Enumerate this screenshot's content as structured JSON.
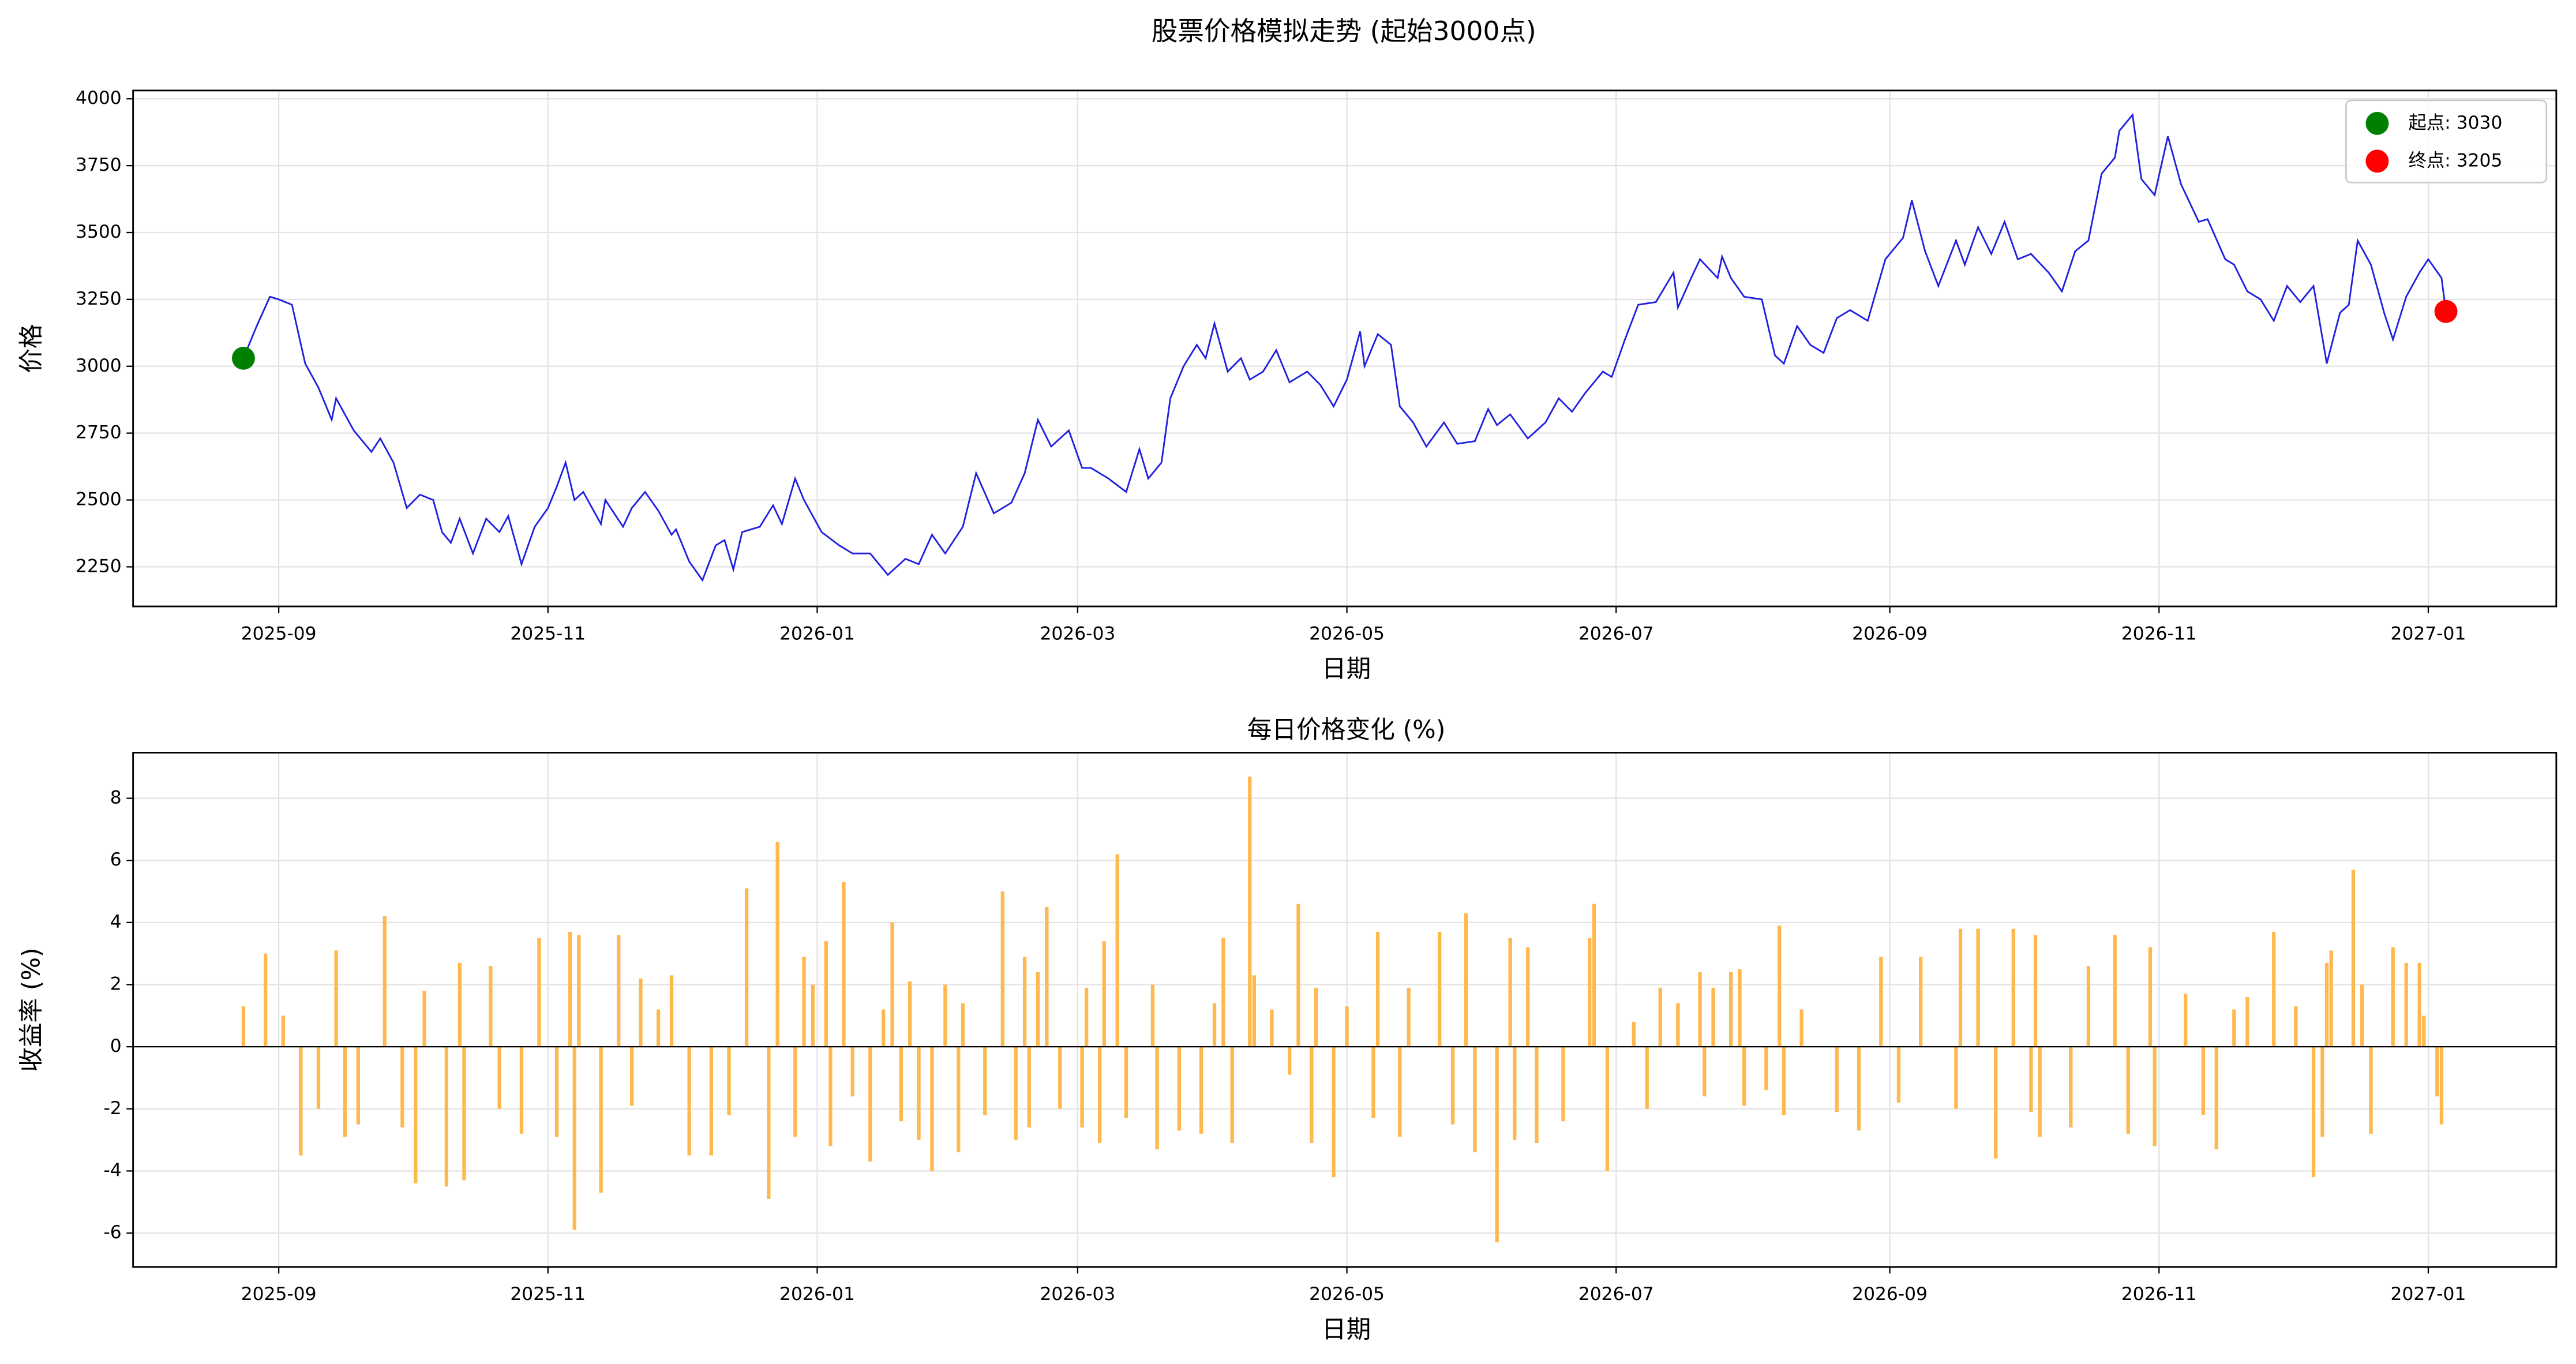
{
  "title": "股票价格模拟走势 (起始3000点)",
  "chart_data": [
    {
      "type": "line",
      "xlabel": "日期",
      "ylabel": "价格",
      "grid": true,
      "legend": "upper right",
      "xlim": [
        -33,
        516
      ],
      "ylim": [
        2102,
        4031
      ],
      "xticks": [
        {
          "value": 0,
          "label": "2025-09"
        },
        {
          "value": 61,
          "label": "2025-11"
        },
        {
          "value": 122,
          "label": "2026-01"
        },
        {
          "value": 181,
          "label": "2026-03"
        },
        {
          "value": 242,
          "label": "2026-05"
        },
        {
          "value": 303,
          "label": "2026-07"
        },
        {
          "value": 365,
          "label": "2026-09"
        },
        {
          "value": 426,
          "label": "2026-11"
        },
        {
          "value": 487,
          "label": "2027-01"
        }
      ],
      "yticks": [
        2250,
        2500,
        2750,
        3000,
        3250,
        3500,
        3750,
        4000
      ],
      "series": [
        {
          "color": "#1f1fe0",
          "x": [
            -8,
            -5,
            -2,
            0,
            3,
            6,
            9,
            12,
            13,
            17,
            21,
            23,
            26,
            29,
            32,
            35,
            37,
            39,
            41,
            44,
            47,
            50,
            52,
            55,
            58,
            61,
            63,
            65,
            67,
            69,
            73,
            74,
            78,
            80,
            83,
            86,
            89,
            90,
            93,
            96,
            99,
            101,
            103,
            105,
            109,
            112,
            114,
            117,
            119,
            123,
            127,
            130,
            134,
            138,
            142,
            145,
            148,
            151,
            155,
            158,
            162,
            166,
            169,
            172,
            175,
            179,
            182,
            184,
            188,
            192,
            195,
            197,
            200,
            202,
            205,
            208,
            210,
            212,
            215,
            218,
            220,
            223,
            226,
            229,
            233,
            236,
            239,
            242,
            245,
            246,
            249,
            252,
            254,
            257,
            260,
            264,
            267,
            271,
            274,
            276,
            279,
            283,
            287,
            290,
            293,
            296,
            300,
            302,
            305,
            308,
            312,
            316,
            317,
            320,
            322,
            326,
            327,
            329,
            332,
            336,
            339,
            341,
            344,
            347,
            350,
            353,
            356,
            360,
            364,
            368,
            370,
            373,
            376,
            380,
            382,
            385,
            388,
            391,
            394,
            397,
            401,
            404,
            407,
            410,
            413,
            416,
            417,
            420,
            422,
            425,
            428,
            431,
            435,
            437,
            441,
            443,
            446,
            449,
            452,
            455,
            458,
            461,
            464,
            467,
            469,
            471,
            474,
            477,
            479,
            482,
            485,
            487,
            490,
            491
          ],
          "values": [
            3030,
            3150,
            3260,
            3250,
            3230,
            3010,
            2920,
            2800,
            2880,
            2760,
            2680,
            2730,
            2640,
            2470,
            2520,
            2500,
            2380,
            2340,
            2430,
            2300,
            2430,
            2380,
            2440,
            2260,
            2400,
            2470,
            2550,
            2640,
            2500,
            2530,
            2410,
            2500,
            2400,
            2470,
            2530,
            2460,
            2370,
            2390,
            2270,
            2200,
            2330,
            2350,
            2240,
            2380,
            2400,
            2480,
            2410,
            2580,
            2500,
            2380,
            2330,
            2300,
            2300,
            2220,
            2280,
            2260,
            2370,
            2300,
            2400,
            2600,
            2450,
            2490,
            2600,
            2800,
            2700,
            2760,
            2620,
            2620,
            2580,
            2530,
            2690,
            2580,
            2640,
            2880,
            3000,
            3080,
            3030,
            3160,
            2980,
            3030,
            2950,
            2980,
            3060,
            2940,
            2980,
            2930,
            2850,
            2950,
            3130,
            3000,
            3120,
            3080,
            2850,
            2790,
            2700,
            2790,
            2710,
            2720,
            2840,
            2780,
            2820,
            2730,
            2790,
            2880,
            2830,
            2900,
            2980,
            2960,
            3100,
            3230,
            3240,
            3350,
            3220,
            3330,
            3400,
            3330,
            3410,
            3330,
            3260,
            3250,
            3040,
            3010,
            3150,
            3080,
            3050,
            3180,
            3210,
            3170,
            3400,
            3480,
            3620,
            3430,
            3300,
            3470,
            3380,
            3520,
            3420,
            3540,
            3400,
            3420,
            3350,
            3280,
            3430,
            3470,
            3720,
            3780,
            3880,
            3940,
            3700,
            3640,
            3860,
            3680,
            3540,
            3550,
            3400,
            3380,
            3280,
            3250,
            3170,
            3300,
            3240,
            3300,
            3010,
            3200,
            3230,
            3470,
            3380,
            3200,
            3100,
            3260,
            3350,
            3400,
            3330,
            3205
          ]
        },
        {
          "name": "起点: 3030",
          "color": "green",
          "x": [
            -8
          ],
          "values": [
            3030
          ]
        },
        {
          "name": "终点: 3205",
          "color": "red",
          "x": [
            491
          ],
          "values": [
            3205
          ]
        }
      ]
    },
    {
      "type": "bar",
      "title": "每日价格变化 (%)",
      "xlabel": "日期",
      "ylabel": "收益率 (%)",
      "grid": true,
      "color": "#ffb84d",
      "zero_line": 0,
      "xlim": [
        -33,
        516
      ],
      "ylim": [
        -7.09,
        9.47
      ],
      "xticks": [
        {
          "value": 0,
          "label": "2025-09"
        },
        {
          "value": 61,
          "label": "2025-11"
        },
        {
          "value": 122,
          "label": "2026-01"
        },
        {
          "value": 181,
          "label": "2026-03"
        },
        {
          "value": 242,
          "label": "2026-05"
        },
        {
          "value": 303,
          "label": "2026-07"
        },
        {
          "value": 365,
          "label": "2026-09"
        },
        {
          "value": 426,
          "label": "2026-11"
        },
        {
          "value": 487,
          "label": "2027-01"
        }
      ],
      "yticks": [
        -6,
        -4,
        -2,
        0,
        2,
        4,
        6,
        8
      ],
      "x": [
        -8,
        -3,
        1,
        5,
        9,
        13,
        15,
        18,
        24,
        28,
        31,
        33,
        38,
        41,
        42,
        48,
        50,
        55,
        59,
        63,
        66,
        67,
        68,
        73,
        77,
        80,
        82,
        86,
        89,
        93,
        98,
        102,
        106,
        111,
        113,
        117,
        119,
        121,
        124,
        125,
        128,
        130,
        134,
        137,
        139,
        141,
        143,
        145,
        148,
        151,
        154,
        155,
        160,
        164,
        167,
        169,
        170,
        172,
        174,
        177,
        182,
        183,
        186,
        187,
        190,
        192,
        198,
        199,
        204,
        209,
        212,
        214,
        216,
        220,
        221,
        225,
        229,
        231,
        234,
        235,
        239,
        242,
        248,
        249,
        254,
        256,
        263,
        266,
        269,
        271,
        276,
        279,
        280,
        283,
        285,
        291,
        297,
        298,
        301,
        307,
        310,
        313,
        317,
        322,
        323,
        325,
        329,
        331,
        332,
        337,
        340,
        341,
        345,
        353,
        358,
        363,
        367,
        372,
        380,
        381,
        385,
        389,
        393,
        397,
        398,
        399,
        406,
        410,
        416,
        419,
        424,
        425,
        432,
        436,
        439,
        443,
        446,
        452,
        457,
        461,
        463,
        464,
        465,
        470,
        472,
        474,
        479,
        482,
        485,
        486,
        489,
        490
      ],
      "values": [
        1.3,
        3.0,
        1.0,
        -3.5,
        -2.0,
        3.1,
        -2.9,
        -2.5,
        4.2,
        -2.6,
        -4.4,
        1.8,
        -4.5,
        2.7,
        -4.3,
        2.6,
        -2.0,
        -2.8,
        3.5,
        -2.9,
        3.7,
        -5.9,
        3.6,
        -4.7,
        3.6,
        -1.9,
        2.2,
        1.2,
        2.3,
        -3.5,
        -3.5,
        -2.2,
        5.1,
        -4.9,
        6.6,
        -2.9,
        2.9,
        2.0,
        3.4,
        -3.2,
        5.3,
        -1.6,
        -3.7,
        1.2,
        4.0,
        -2.4,
        2.1,
        -3.0,
        -4.0,
        2.0,
        -3.4,
        1.4,
        -2.2,
        5.0,
        -3.0,
        2.9,
        -2.6,
        2.4,
        4.5,
        -2.0,
        -2.6,
        1.9,
        -3.1,
        3.4,
        6.2,
        -2.3,
        2.0,
        -3.3,
        -2.7,
        -2.8,
        1.4,
        3.5,
        -3.1,
        8.7,
        2.3,
        1.2,
        -0.9,
        4.6,
        -3.1,
        1.9,
        -4.2,
        1.3,
        -2.3,
        3.7,
        -2.9,
        1.9,
        3.7,
        -2.5,
        4.3,
        -3.4,
        -6.3,
        3.5,
        -3.0,
        3.2,
        -3.1,
        -2.4,
        3.5,
        4.6,
        -4.0,
        0.8,
        -2.0,
        1.9,
        1.4,
        2.4,
        -1.6,
        1.9,
        2.4,
        2.5,
        -1.9,
        -1.4,
        3.9,
        -2.2,
        1.2,
        -2.1,
        -2.7,
        2.9,
        -1.8,
        2.9,
        -2.0,
        3.8,
        3.8,
        -3.6,
        3.8,
        -2.1,
        3.6,
        -2.9,
        -2.6,
        2.6,
        3.6,
        -2.8,
        3.2,
        -3.2,
        1.7,
        -2.2,
        -3.3,
        1.2,
        1.6,
        3.7,
        1.3,
        -4.2,
        -2.9,
        2.7,
        3.1,
        5.7,
        2.0,
        -2.8,
        3.2,
        2.7,
        2.7,
        1.0,
        -1.6,
        -2.5
      ]
    }
  ]
}
